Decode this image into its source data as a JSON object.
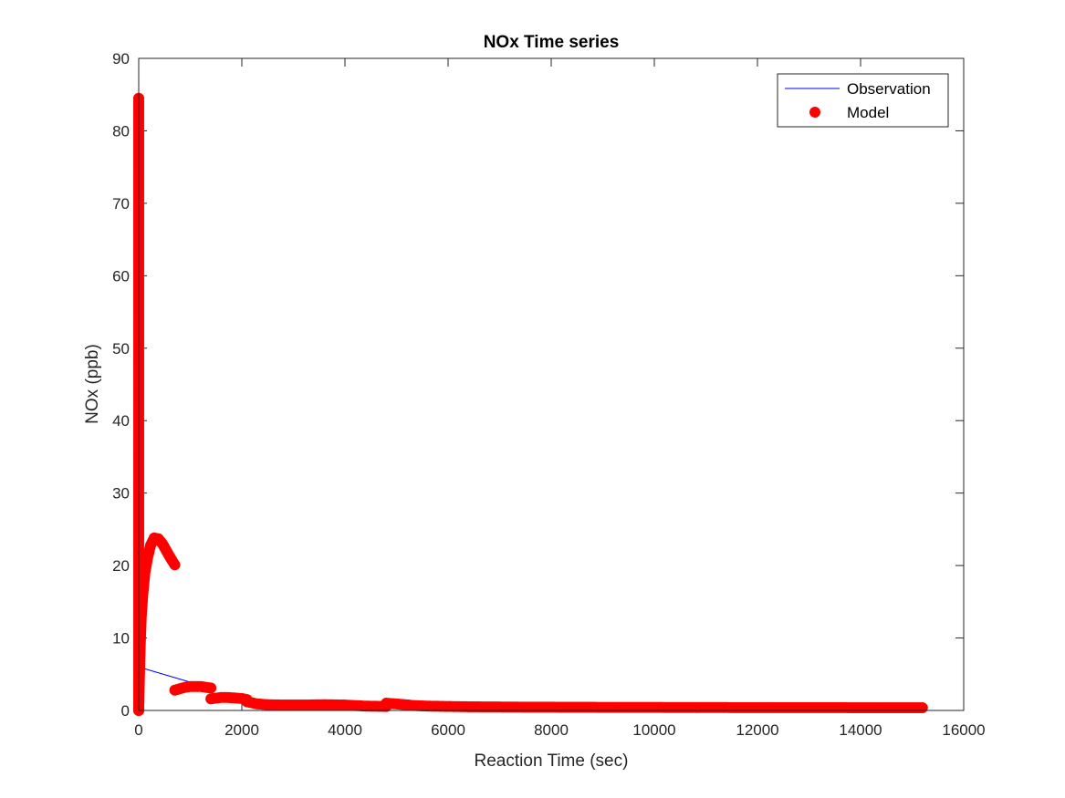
{
  "colors": {
    "observation": "#0000ff",
    "model": "#ff0000",
    "axis": "#262626",
    "background": "#ffffff"
  },
  "chart_data": {
    "type": "scatter",
    "title": "NOx Time series",
    "xlabel": "Reaction Time (sec)",
    "ylabel": "NOx (ppb)",
    "xlim": [
      0,
      16000
    ],
    "ylim": [
      0,
      90
    ],
    "xticks": [
      0,
      2000,
      4000,
      6000,
      8000,
      10000,
      12000,
      14000,
      16000
    ],
    "yticks": [
      0,
      10,
      20,
      30,
      40,
      50,
      60,
      70,
      80,
      90
    ],
    "grid": false,
    "legend_position": "top-right",
    "series": [
      {
        "name": "Observation",
        "style": "line",
        "x": [
          0,
          1000
        ],
        "y": [
          6,
          3.9
        ]
      },
      {
        "name": "Model",
        "style": "markers",
        "segments": [
          {
            "x": [
              0,
              0,
              0,
              0,
              0,
              0,
              0,
              0,
              0,
              0,
              0,
              0,
              0,
              0,
              0,
              0,
              0,
              0
            ],
            "y": [
              84.5,
              80,
              75,
              70,
              65,
              60,
              55,
              50,
              45,
              40,
              35,
              30,
              25,
              20,
              15,
              10,
              5,
              0
            ]
          },
          {
            "x": [
              0,
              15,
              30,
              50,
              80,
              120,
              170,
              230,
              300,
              380,
              460,
              540,
              620,
              700
            ],
            "y": [
              0,
              5,
              9,
              13,
              16,
              19,
              21,
              22.8,
              23.8,
              23.7,
              23,
              22,
              21,
              20.1
            ]
          },
          {
            "x": [
              700,
              800,
              900,
              1000,
              1100,
              1200,
              1300,
              1400
            ],
            "y": [
              2.8,
              3.0,
              3.2,
              3.3,
              3.3,
              3.3,
              3.2,
              3.1
            ]
          },
          {
            "x": [
              1400,
              1500,
              1600,
              1700,
              1800,
              1900,
              2000,
              2100
            ],
            "y": [
              1.6,
              1.7,
              1.8,
              1.8,
              1.75,
              1.7,
              1.65,
              1.5
            ]
          },
          {
            "x": [
              2100,
              2300,
              2500,
              2800,
              3200,
              3600,
              4000,
              4400,
              4800
            ],
            "y": [
              1.2,
              0.9,
              0.8,
              0.75,
              0.75,
              0.8,
              0.75,
              0.6,
              0.55
            ]
          },
          {
            "x": [
              4800,
              5000,
              5300,
              5600,
              6000,
              6500,
              7000,
              7500,
              8000,
              8500,
              9000,
              9500,
              10000,
              10500,
              11000,
              11500,
              12000,
              12500,
              13000,
              13500,
              14000,
              14500,
              15000,
              15200
            ],
            "y": [
              1.0,
              0.9,
              0.7,
              0.6,
              0.55,
              0.5,
              0.48,
              0.46,
              0.45,
              0.44,
              0.43,
              0.42,
              0.42,
              0.41,
              0.41,
              0.4,
              0.4,
              0.4,
              0.39,
              0.39,
              0.38,
              0.38,
              0.37,
              0.37
            ]
          }
        ]
      }
    ]
  }
}
